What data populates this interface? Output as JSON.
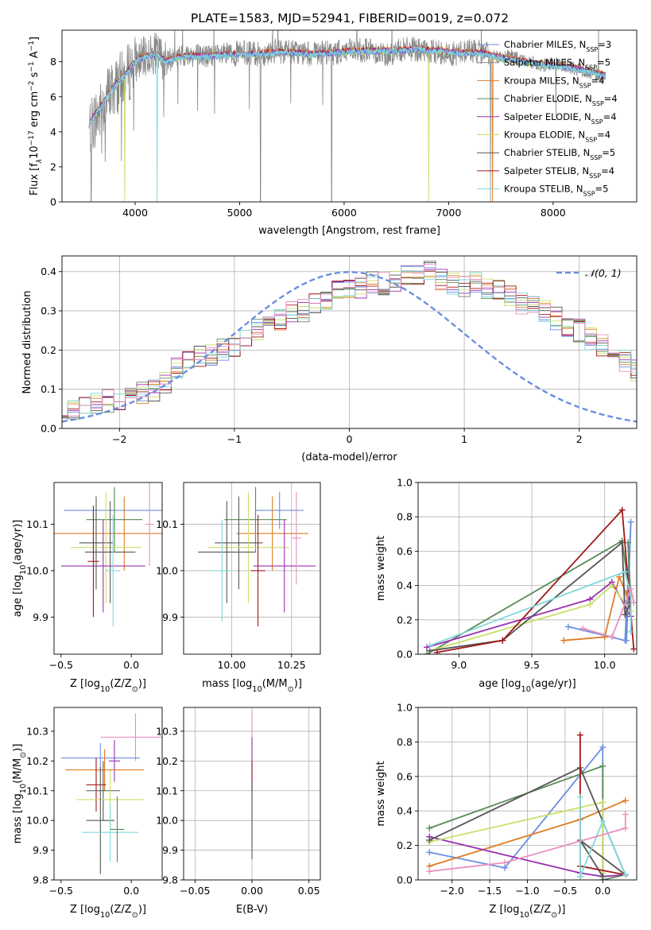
{
  "title": "PLATE=1583, MJD=52941, FIBERID=0019, z=0.072",
  "palette": [
    "#6a8fe0",
    "#888888",
    "#e07b22",
    "#5a8a5a",
    "#9a30b0",
    "#c8e06a",
    "#555555",
    "#a01818",
    "#80d8dc",
    "#e890c0"
  ],
  "chart_data": [
    {
      "id": "spectrum",
      "type": "line",
      "xlabel": "wavelength [Angstrom, rest frame]",
      "ylabel": "Flux [f$_\\lambda$10$^{-17}$ erg cm$^{-2}$ s$^{-1}$ A$^{-1}$]",
      "ylabel_parts": [
        "Flux [f",
        "λ",
        "10",
        "−17",
        " erg cm",
        "−2",
        " s",
        "−1",
        " A",
        "−1",
        "]"
      ],
      "xlim": [
        3300,
        8800
      ],
      "ylim": [
        0,
        9.8
      ],
      "xticks": [
        4000,
        5000,
        6000,
        7000,
        8000
      ],
      "yticks": [
        0,
        2,
        4,
        6,
        8
      ],
      "legend_position": "right",
      "legend": [
        {
          "label": "Chabrier MILES, N",
          "sub": "SSP",
          "tail": "=3",
          "color": "#6a8fe0"
        },
        {
          "label": "Salpeter MILES, N",
          "sub": "SSP",
          "tail": "=5",
          "color": "#888888"
        },
        {
          "label": "Kroupa MILES, N",
          "sub": "SSP",
          "tail": "=4",
          "color": "#e07b22"
        },
        {
          "label": "Chabrier ELODIE, N",
          "sub": "SSP",
          "tail": "=4",
          "color": "#5a8a5a"
        },
        {
          "label": "Salpeter ELODIE, N",
          "sub": "SSP",
          "tail": "=4",
          "color": "#9a30b0"
        },
        {
          "label": "Kroupa ELODIE, N",
          "sub": "SSP",
          "tail": "=4",
          "color": "#c8e06a"
        },
        {
          "label": "Chabrier STELIB, N",
          "sub": "SSP",
          "tail": "=5",
          "color": "#555555"
        },
        {
          "label": "Salpeter STELIB, N",
          "sub": "SSP",
          "tail": "=4",
          "color": "#a01818"
        },
        {
          "label": "Kroupa STELIB, N",
          "sub": "SSP",
          "tail": "=5",
          "color": "#80d8dc"
        }
      ],
      "series": [
        {
          "name": "observed",
          "color": "#888888",
          "x": [
            3560,
            3600,
            3650,
            3700,
            3750,
            3800,
            3850,
            3900,
            3950,
            4000,
            4050,
            4100,
            4150,
            4200,
            4250,
            4300,
            4350,
            4400,
            4450,
            4500,
            4600,
            4700,
            4800,
            4900,
            5000,
            5100,
            5200,
            5300,
            5400,
            5500,
            5600,
            5700,
            5800,
            5900,
            6000,
            6100,
            6200,
            6300,
            6400,
            6500,
            6600,
            6700,
            6800,
            6900,
            7000,
            7100,
            7200,
            7300,
            7400,
            7500,
            7600,
            7700,
            7800,
            7900,
            8000,
            8100,
            8200,
            8300,
            8400,
            8500
          ],
          "y": [
            4.2,
            4.6,
            5.0,
            5.6,
            6.2,
            6.5,
            6.8,
            7.0,
            7.5,
            8.0,
            8.1,
            8.3,
            8.4,
            8.5,
            8.3,
            7.9,
            8.2,
            8.3,
            8.3,
            8.4,
            8.4,
            8.3,
            8.3,
            8.4,
            8.5,
            8.5,
            8.4,
            8.6,
            8.6,
            8.6,
            8.5,
            8.4,
            8.5,
            8.5,
            8.6,
            8.6,
            8.7,
            8.6,
            8.4,
            8.6,
            8.7,
            8.7,
            8.5,
            8.6,
            8.4,
            8.5,
            8.7,
            8.5,
            8.4,
            8.2,
            8.3,
            8.1,
            8.0,
            7.8,
            7.9,
            7.8,
            7.6,
            7.5,
            7.3,
            7.2
          ]
        },
        {
          "name": "model",
          "color": "#80d8dc",
          "x": [
            3560,
            3600,
            3700,
            3800,
            3900,
            4000,
            4100,
            4200,
            4300,
            4400,
            4500,
            4700,
            4900,
            5100,
            5300,
            5500,
            5700,
            5900,
            6100,
            6300,
            6500,
            6700,
            6900,
            7100,
            7300,
            7500,
            7700,
            7900,
            8100,
            8300,
            8500
          ],
          "y": [
            4.4,
            4.8,
            5.7,
            6.6,
            7.2,
            8.0,
            8.3,
            8.4,
            8.0,
            8.2,
            8.3,
            8.3,
            8.4,
            8.4,
            8.5,
            8.5,
            8.4,
            8.5,
            8.6,
            8.6,
            8.6,
            8.7,
            8.6,
            8.5,
            8.5,
            8.2,
            8.0,
            7.8,
            7.7,
            7.5,
            7.2
          ]
        }
      ]
    },
    {
      "id": "residuals",
      "type": "bar",
      "xlabel": "(data-model)/error",
      "ylabel": "Normed distribution",
      "xlim": [
        -2.5,
        2.5
      ],
      "ylim": [
        0,
        0.44
      ],
      "xticks": [
        -2,
        -1,
        0,
        1,
        2
      ],
      "yticks": [
        0.0,
        0.1,
        0.2,
        0.3,
        0.4
      ],
      "legend_position": "top-right",
      "legend": [
        {
          "label": "𝒩(0, 1)",
          "color": "#6a8fe0"
        }
      ],
      "bin_width": 0.1,
      "series": [
        {
          "name": "histogram",
          "values": [
            0.04,
            0.045,
            0.05,
            0.06,
            0.07,
            0.07,
            0.08,
            0.09,
            0.1,
            0.12,
            0.15,
            0.17,
            0.18,
            0.19,
            0.2,
            0.21,
            0.23,
            0.25,
            0.26,
            0.28,
            0.3,
            0.3,
            0.32,
            0.33,
            0.35,
            0.35,
            0.36,
            0.37,
            0.37,
            0.38,
            0.39,
            0.39,
            0.4,
            0.38,
            0.37,
            0.36,
            0.37,
            0.36,
            0.35,
            0.34,
            0.32,
            0.31,
            0.3,
            0.28,
            0.26,
            0.25,
            0.23,
            0.21,
            0.19,
            0.17,
            0.15,
            0.14,
            0.13,
            0.12,
            0.11,
            0.1,
            0.09,
            0.08,
            0.07,
            0.06,
            0.05
          ]
        },
        {
          "name": "N(0,1)",
          "type": "line",
          "mu": 0,
          "sigma": 1
        }
      ]
    },
    {
      "id": "age_vs_Z",
      "type": "scatter",
      "xlabel": "Z [log$_{10}$(Z/Z$_\\odot$)]",
      "ylabel": "age  [log$_{10}$(age/yr)]",
      "xlim": [
        -0.55,
        0.22
      ],
      "ylim": [
        9.82,
        10.19
      ],
      "xticks": [
        -0.5,
        0.0
      ],
      "yticks": [
        9.9,
        10.0,
        10.1
      ],
      "series": [
        {
          "name": "c0",
          "x": -0.12,
          "y": 10.13,
          "xerr": 0.36,
          "yerr": 0.04
        },
        {
          "name": "c2",
          "x": -0.05,
          "y": 10.08,
          "xerr": 0.5,
          "yerr": 0.08
        },
        {
          "name": "c3",
          "x": -0.12,
          "y": 10.11,
          "xerr": 0.2,
          "yerr": 0.07
        },
        {
          "name": "c6",
          "x": -0.25,
          "y": 10.06,
          "xerr": 0.12,
          "yerr": 0.1
        },
        {
          "name": "c5",
          "x": -0.18,
          "y": 10.05,
          "xerr": 0.25,
          "yerr": 0.12
        },
        {
          "name": "c6b",
          "x": -0.15,
          "y": 10.04,
          "xerr": 0.18,
          "yerr": 0.11
        },
        {
          "name": "c4",
          "x": -0.2,
          "y": 10.01,
          "xerr": 0.3,
          "yerr": 0.1
        },
        {
          "name": "c7",
          "x": -0.27,
          "y": 10.02,
          "xerr": 0.04,
          "yerr": 0.12
        },
        {
          "name": "c8",
          "x": -0.13,
          "y": 10.0,
          "xerr": 0.05,
          "yerr": 0.12
        },
        {
          "name": "c9",
          "x": 0.13,
          "y": 10.1,
          "xerr": 0.03,
          "yerr": 0.09
        }
      ]
    },
    {
      "id": "age_vs_mass",
      "type": "scatter",
      "xlabel": "mass [log$_{10}$(M/M$_\\odot$)]",
      "xlim": [
        9.8,
        10.37
      ],
      "ylim": [
        9.82,
        10.19
      ],
      "xticks": [
        10.0,
        10.25
      ],
      "yticks": [
        9.9,
        10.0,
        10.1
      ],
      "series": [
        {
          "name": "c0",
          "x": 10.2,
          "y": 10.13,
          "xerr": 0.1,
          "yerr": 0.04
        },
        {
          "name": "c3",
          "x": 10.1,
          "y": 10.11,
          "xerr": 0.13,
          "yerr": 0.07
        },
        {
          "name": "c2",
          "x": 10.17,
          "y": 10.08,
          "xerr": 0.15,
          "yerr": 0.08
        },
        {
          "name": "c6",
          "x": 10.03,
          "y": 10.06,
          "xerr": 0.1,
          "yerr": 0.1
        },
        {
          "name": "c5",
          "x": 10.07,
          "y": 10.05,
          "xerr": 0.17,
          "yerr": 0.12
        },
        {
          "name": "c6b",
          "x": 9.98,
          "y": 10.04,
          "xerr": 0.12,
          "yerr": 0.11
        },
        {
          "name": "c4",
          "x": 10.22,
          "y": 10.01,
          "xerr": 0.13,
          "yerr": 0.1
        },
        {
          "name": "c8",
          "x": 9.96,
          "y": 10.0,
          "xerr": 0.04,
          "yerr": 0.11
        },
        {
          "name": "c7",
          "x": 10.11,
          "y": 10.0,
          "xerr": 0.03,
          "yerr": 0.12
        },
        {
          "name": "c1",
          "x": 10.27,
          "y": 10.07,
          "xerr": 0.02,
          "yerr": 0.1
        }
      ]
    },
    {
      "id": "weight_vs_age",
      "type": "line",
      "xlabel": "age  [log$_{10}$(age/yr)]",
      "ylabel": "mass weight",
      "xlim": [
        8.72,
        10.22
      ],
      "ylim": [
        0,
        1.0
      ],
      "xticks": [
        9.0,
        9.5,
        10.0
      ],
      "yticks": [
        0.0,
        0.2,
        0.4,
        0.6,
        0.8,
        1.0
      ],
      "series": [
        {
          "name": "c0",
          "x": [
            9.75,
            10.14,
            10.18,
            10.15
          ],
          "y": [
            0.16,
            0.08,
            0.77,
            0.08
          ]
        },
        {
          "name": "c2",
          "x": [
            9.72,
            10.0,
            10.1,
            10.15
          ],
          "y": [
            0.08,
            0.1,
            0.45,
            0.35
          ]
        },
        {
          "name": "c3",
          "x": [
            8.78,
            10.12,
            10.18,
            10.16
          ],
          "y": [
            0.0,
            0.66,
            0.3,
            0.65
          ]
        },
        {
          "name": "c4",
          "x": [
            8.78,
            9.9,
            10.05,
            10.18
          ],
          "y": [
            0.04,
            0.32,
            0.42,
            0.22
          ]
        },
        {
          "name": "c5",
          "x": [
            8.8,
            9.9,
            10.05,
            10.18
          ],
          "y": [
            0.02,
            0.29,
            0.4,
            0.25
          ]
        },
        {
          "name": "c6",
          "x": [
            8.8,
            9.3,
            10.12,
            10.14,
            10.18
          ],
          "y": [
            0.02,
            0.08,
            0.65,
            0.23,
            0.3
          ]
        },
        {
          "name": "c7",
          "x": [
            8.85,
            9.3,
            10.12,
            10.2
          ],
          "y": [
            0.01,
            0.08,
            0.84,
            0.03
          ]
        },
        {
          "name": "c8",
          "x": [
            8.8,
            10.14,
            10.18,
            10.18
          ],
          "y": [
            0.05,
            0.48,
            0.34,
            0.13
          ]
        },
        {
          "name": "c9",
          "x": [
            9.85,
            10.05,
            10.18,
            10.2
          ],
          "y": [
            0.15,
            0.1,
            0.38,
            0.3
          ]
        }
      ]
    },
    {
      "id": "mass_vs_Z",
      "type": "scatter",
      "xlabel": "Z [log$_{10}$(Z/Z$_\\odot$)]",
      "ylabel": "mass [log$_{10}$(M/M$_\\odot$)]",
      "xlim": [
        -0.55,
        0.22
      ],
      "ylim": [
        9.8,
        10.38
      ],
      "xticks": [
        -0.5,
        0.0
      ],
      "yticks": [
        9.8,
        9.9,
        10.0,
        10.1,
        10.2,
        10.3
      ],
      "series": [
        {
          "name": "c9",
          "x": 0.03,
          "y": 10.28,
          "xerr": 0.25,
          "yerr": 0.08
        },
        {
          "name": "c0",
          "x": -0.22,
          "y": 10.21,
          "xerr": 0.28,
          "yerr": 0.05
        },
        {
          "name": "c4",
          "x": -0.12,
          "y": 10.2,
          "xerr": 0.04,
          "yerr": 0.07
        },
        {
          "name": "c2",
          "x": -0.19,
          "y": 10.17,
          "xerr": 0.28,
          "yerr": 0.07
        },
        {
          "name": "c7",
          "x": -0.25,
          "y": 10.12,
          "xerr": 0.07,
          "yerr": 0.09
        },
        {
          "name": "c6",
          "x": -0.2,
          "y": 10.1,
          "xerr": 0.12,
          "yerr": 0.1
        },
        {
          "name": "c5",
          "x": -0.15,
          "y": 10.07,
          "xerr": 0.24,
          "yerr": 0.1
        },
        {
          "name": "c6b",
          "x": -0.22,
          "y": 10.0,
          "xerr": 0.1,
          "yerr": 0.18
        },
        {
          "name": "c8",
          "x": -0.15,
          "y": 9.96,
          "xerr": 0.2,
          "yerr": 0.1
        },
        {
          "name": "c3",
          "x": -0.1,
          "y": 9.97,
          "xerr": 0.05,
          "yerr": 0.11
        }
      ]
    },
    {
      "id": "mass_vs_EBV",
      "type": "scatter",
      "xlabel": "E(B-V)",
      "xlim": [
        -0.06,
        0.06
      ],
      "ylim": [
        9.8,
        10.38
      ],
      "xticks": [
        -0.05,
        0.0,
        0.05
      ],
      "yticks": [
        9.8,
        9.9,
        10.0,
        10.1,
        10.2,
        10.3
      ],
      "series": [
        {
          "name": "c9",
          "x": 0.0,
          "y": 10.15,
          "yerr": 0.22
        },
        {
          "name": "c4",
          "x": 0.0,
          "y": 10.18,
          "yerr": 0.1
        },
        {
          "name": "c7",
          "x": 0.0,
          "y": 10.15,
          "yerr": 0.05
        },
        {
          "name": "c6",
          "x": 0.0,
          "y": 10.0,
          "yerr": 0.13
        }
      ]
    },
    {
      "id": "weight_vs_Z",
      "type": "line",
      "xlabel": "Z [log$_{10}$(Z/Z$_\\odot$)]",
      "ylabel": "mass weight",
      "xlim": [
        -2.45,
        0.45
      ],
      "ylim": [
        0,
        1.0
      ],
      "xticks": [
        -2.0,
        -1.5,
        -1.0,
        -0.5,
        0.0
      ],
      "yticks": [
        0.0,
        0.2,
        0.4,
        0.6,
        0.8,
        1.0
      ],
      "series": [
        {
          "name": "c0",
          "x": [
            -2.3,
            -1.3,
            0.0,
            0.0
          ],
          "y": [
            0.16,
            0.07,
            0.77,
            0.0
          ]
        },
        {
          "name": "c2",
          "x": [
            -2.3,
            -0.3,
            0.3
          ],
          "y": [
            0.08,
            0.35,
            0.46
          ]
        },
        {
          "name": "c3",
          "x": [
            -2.3,
            0.0,
            0.0,
            0.3
          ],
          "y": [
            0.3,
            0.66,
            0.0,
            0.03
          ]
        },
        {
          "name": "c4",
          "x": [
            -2.3,
            -0.3,
            0.0,
            0.3
          ],
          "y": [
            0.25,
            0.04,
            0.02,
            0.03
          ]
        },
        {
          "name": "c5",
          "x": [
            -2.3,
            0.0,
            0.0
          ],
          "y": [
            0.22,
            0.45,
            0.04
          ]
        },
        {
          "name": "c6",
          "x": [
            -2.3,
            -0.3,
            0.3,
            -0.3,
            0.0
          ],
          "y": [
            0.23,
            0.65,
            0.03,
            0.23,
            0.02
          ]
        },
        {
          "name": "c7",
          "x": [
            -0.3,
            -0.3,
            -0.3,
            0.3
          ],
          "y": [
            0.84,
            0.02,
            0.08,
            0.03
          ]
        },
        {
          "name": "c8",
          "x": [
            -0.3,
            -0.3,
            0.0,
            0.3,
            0.3
          ],
          "y": [
            0.48,
            0.02,
            0.34,
            0.03,
            0.03
          ]
        },
        {
          "name": "c9",
          "x": [
            -2.3,
            -1.3,
            0.3,
            0.3
          ],
          "y": [
            0.05,
            0.1,
            0.3,
            0.38
          ]
        }
      ]
    }
  ]
}
